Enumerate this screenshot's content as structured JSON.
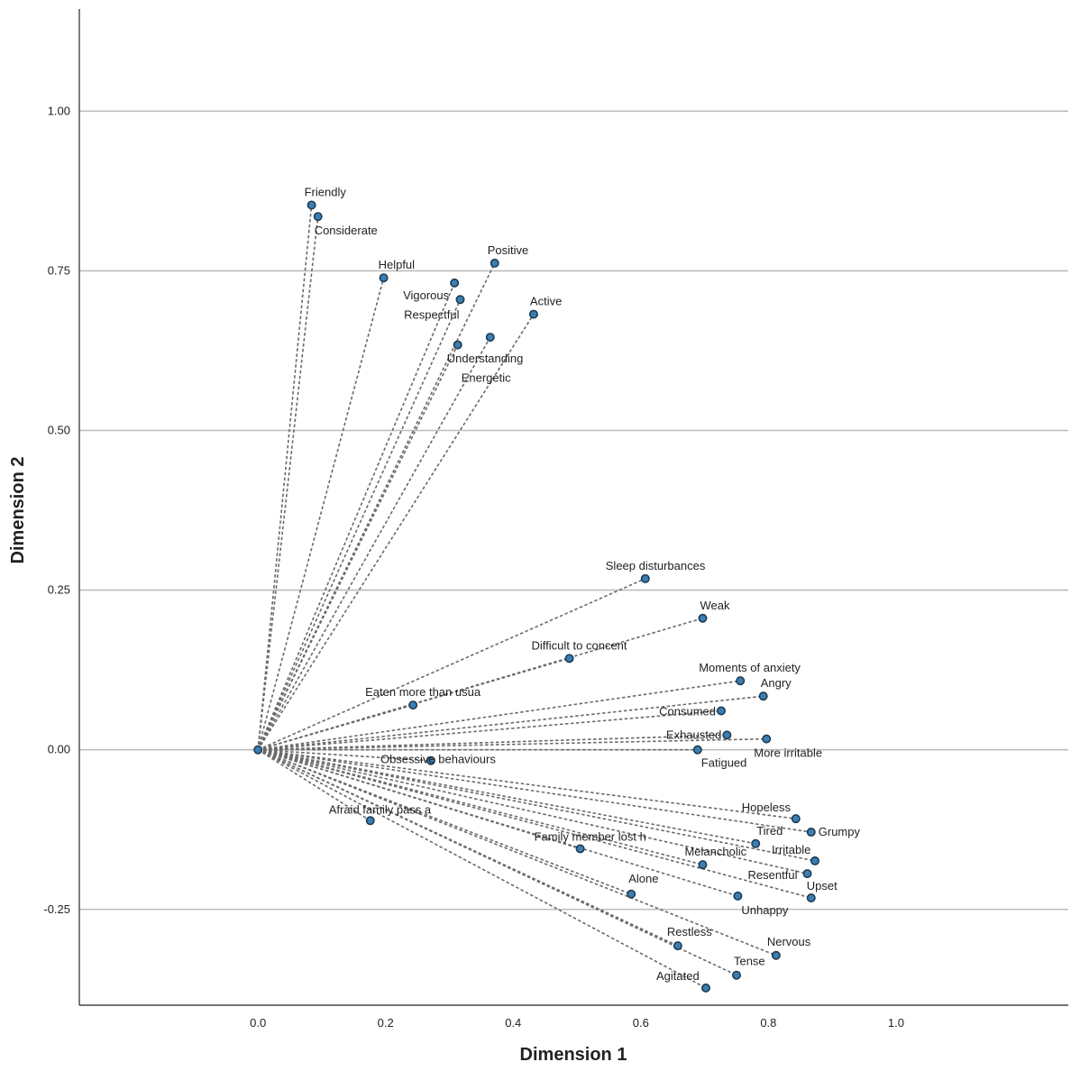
{
  "chart_data": {
    "type": "scatter",
    "title": "",
    "xlabel": "Dimension 1",
    "ylabel": "Dimension 2",
    "xlim": [
      -0.28,
      1.27
    ],
    "ylim": [
      -0.4,
      1.16
    ],
    "xticks": [
      "0.0",
      "0.2",
      "0.4",
      "0.6",
      "0.8",
      "1.0"
    ],
    "xtick_values": [
      0.0,
      0.2,
      0.4,
      0.6,
      0.8,
      1.0
    ],
    "yticks": [
      "1.00",
      "0.75",
      "0.50",
      "0.25",
      "0.00",
      "-0.25"
    ],
    "ytick_values": [
      1.0,
      0.75,
      0.5,
      0.25,
      0.0,
      -0.25
    ],
    "grid": true,
    "origin": [
      0,
      0
    ],
    "point_color": "#3a7fb3",
    "points": [
      {
        "label": "Friendly",
        "x": 0.084,
        "y": 0.853
      },
      {
        "label": "Considerate",
        "x": 0.094,
        "y": 0.835
      },
      {
        "label": "Helpful",
        "x": 0.197,
        "y": 0.739
      },
      {
        "label": "Positive",
        "x": 0.371,
        "y": 0.762
      },
      {
        "label": "Vigorous",
        "x": 0.308,
        "y": 0.731
      },
      {
        "label": "Respectful",
        "x": 0.317,
        "y": 0.705
      },
      {
        "label": "Active",
        "x": 0.432,
        "y": 0.682
      },
      {
        "label": "Understanding",
        "x": 0.364,
        "y": 0.646
      },
      {
        "label": "Energetic",
        "x": 0.313,
        "y": 0.634
      },
      {
        "label": "Sleep disturbances",
        "x": 0.607,
        "y": 0.268
      },
      {
        "label": "Weak",
        "x": 0.697,
        "y": 0.206
      },
      {
        "label": "Difficult to concent",
        "x": 0.488,
        "y": 0.143
      },
      {
        "label": "Moments of anxiety",
        "x": 0.756,
        "y": 0.108
      },
      {
        "label": "Angry",
        "x": 0.792,
        "y": 0.084
      },
      {
        "label": "Eaten more than usua",
        "x": 0.243,
        "y": 0.07
      },
      {
        "label": "Consumed",
        "x": 0.726,
        "y": 0.061
      },
      {
        "label": "Exhausted",
        "x": 0.735,
        "y": 0.023
      },
      {
        "label": "More irritable",
        "x": 0.797,
        "y": 0.017
      },
      {
        "label": "Fatigued",
        "x": 0.689,
        "y": 0.0
      },
      {
        "label": "Obsessive behaviours",
        "x": 0.271,
        "y": -0.017
      },
      {
        "label": "Hopeless",
        "x": 0.843,
        "y": -0.108
      },
      {
        "label": "Grumpy",
        "x": 0.867,
        "y": -0.129
      },
      {
        "label": "Afraid family pass a",
        "x": 0.176,
        "y": -0.111
      },
      {
        "label": "Tired",
        "x": 0.78,
        "y": -0.147
      },
      {
        "label": "Irritable",
        "x": 0.873,
        "y": -0.174
      },
      {
        "label": "Family member lost h",
        "x": 0.505,
        "y": -0.155
      },
      {
        "label": "Melancholic",
        "x": 0.697,
        "y": -0.18
      },
      {
        "label": "Resentful",
        "x": 0.861,
        "y": -0.194
      },
      {
        "label": "Upset",
        "x": 0.867,
        "y": -0.232
      },
      {
        "label": "Alone",
        "x": 0.585,
        "y": -0.226
      },
      {
        "label": "Unhappy",
        "x": 0.752,
        "y": -0.229
      },
      {
        "label": "Restless",
        "x": 0.658,
        "y": -0.307
      },
      {
        "label": "Nervous",
        "x": 0.812,
        "y": -0.322
      },
      {
        "label": "Tense",
        "x": 0.75,
        "y": -0.353
      },
      {
        "label": "Agitated",
        "x": 0.702,
        "y": -0.373
      }
    ]
  }
}
